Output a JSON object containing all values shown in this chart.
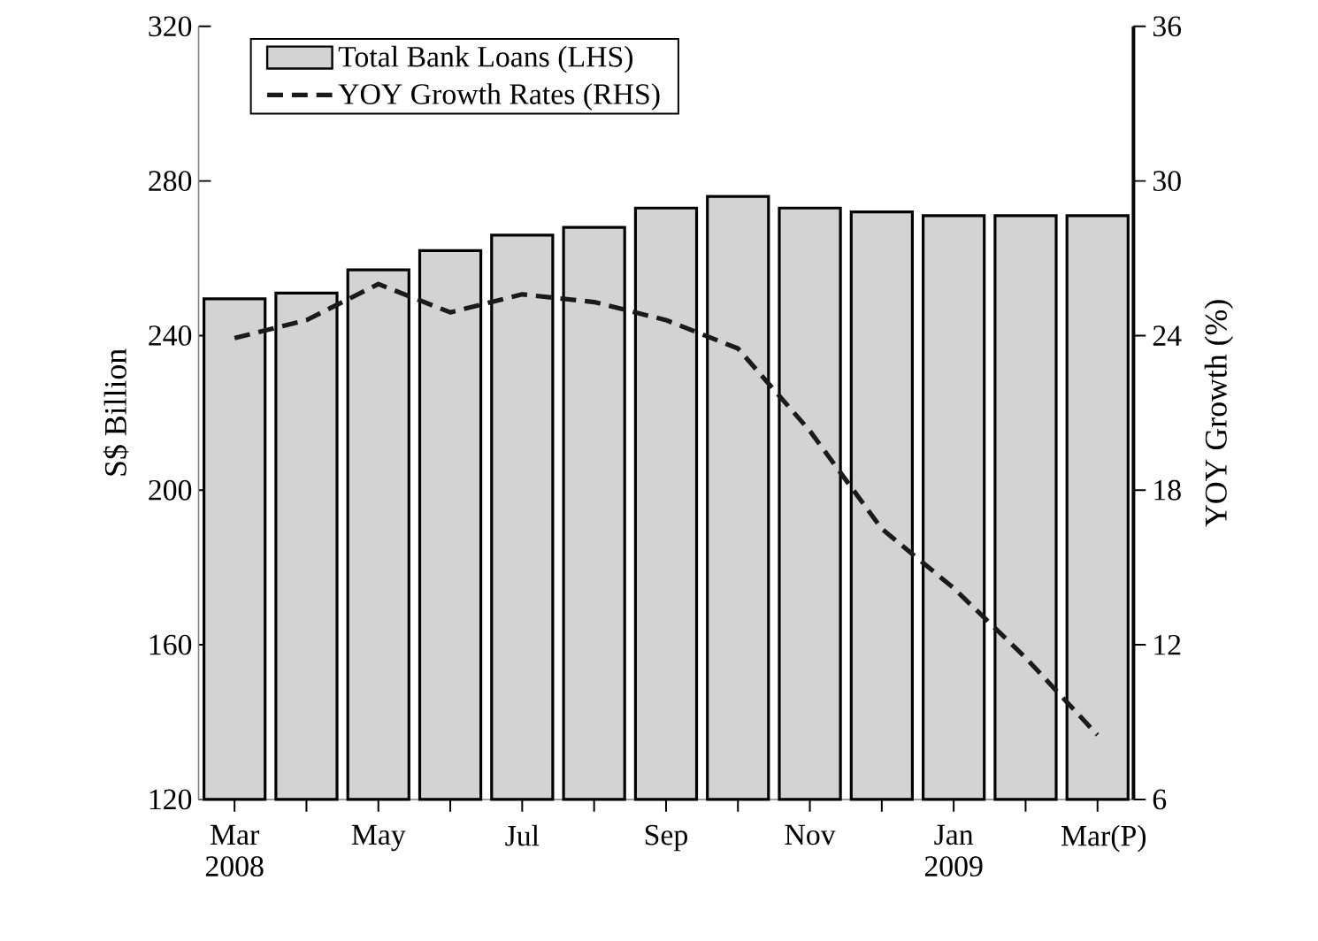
{
  "chart_data": {
    "type": "bar",
    "categories": [
      "Mar 2008",
      null,
      "May",
      null,
      "Jul",
      null,
      "Sep",
      null,
      "Nov",
      null,
      "Jan 2009",
      null,
      "Mar(P)"
    ],
    "series": [
      {
        "name": "Total Bank Loans (LHS)",
        "color": "#d3d3d3",
        "values": [
          249.5,
          251,
          257,
          262,
          266,
          268,
          273,
          276,
          273,
          272,
          271,
          271,
          271
        ]
      },
      {
        "name": "YOY Growth Rates (RHS)",
        "type": "line",
        "axis": "y2",
        "color": "#1a1a1a",
        "line_style": "dashed",
        "values": [
          23.9,
          24.6,
          26.0,
          24.9,
          25.6,
          25.3,
          24.6,
          23.5,
          20.3,
          16.5,
          14.2,
          11.5,
          8.5
        ]
      }
    ],
    "ylabel": "S$ Billion",
    "y2label": "YOY Growth (%)",
    "ylim": [
      120,
      320
    ],
    "yticks": [
      120,
      160,
      200,
      240,
      280,
      320
    ],
    "y2lim": [
      6,
      36
    ],
    "y2ticks": [
      6,
      12,
      18,
      24,
      30,
      36
    ],
    "legend": "top left"
  }
}
